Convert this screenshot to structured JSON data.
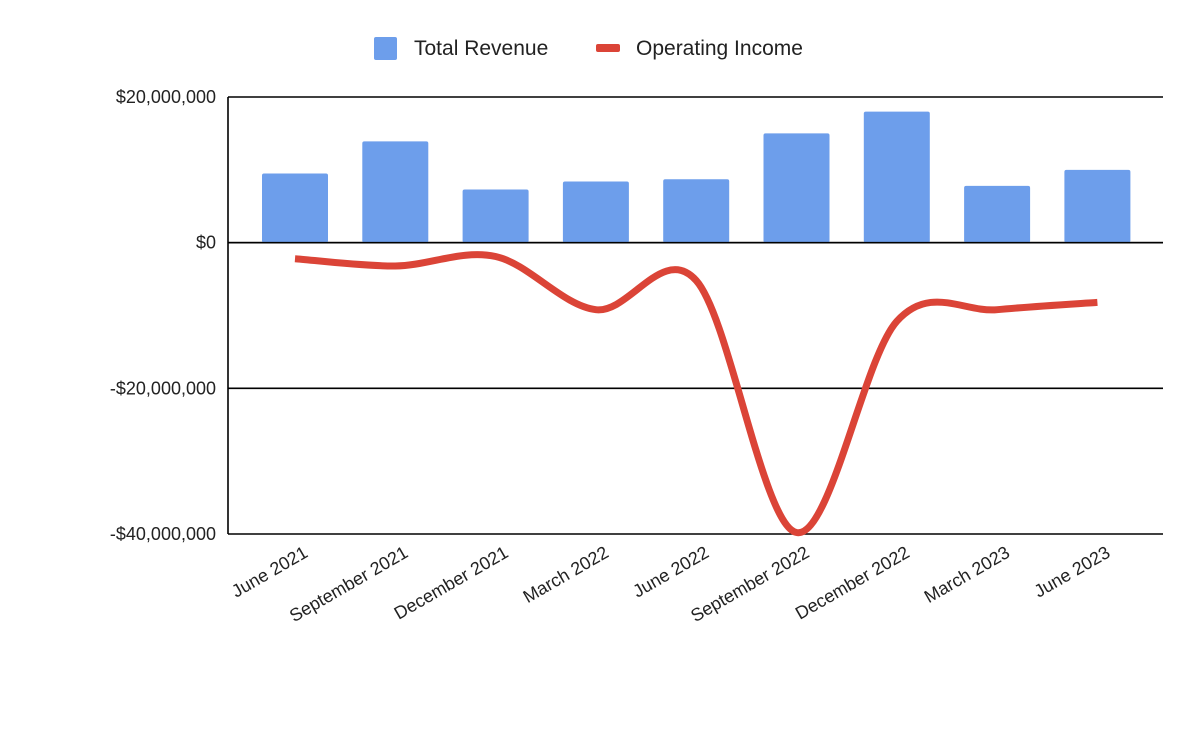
{
  "chart_data": {
    "type": "bar",
    "title": "",
    "xlabel": "",
    "ylabel": "",
    "categories": [
      "June 2021",
      "September 2021",
      "December 2021",
      "March 2022",
      "June 2022",
      "September 2022",
      "December 2022",
      "March 2023",
      "June 2023"
    ],
    "series": [
      {
        "name": "Total Revenue",
        "type": "bar",
        "color": "#6d9eeb",
        "values": [
          9500000,
          13900000,
          7300000,
          8400000,
          8700000,
          15000000,
          18000000,
          7800000,
          10000000
        ]
      },
      {
        "name": "Operating Income",
        "type": "line",
        "smooth": true,
        "color": "#db4437",
        "values": [
          -2200000,
          -3200000,
          -1900000,
          -9200000,
          -5200000,
          -39800000,
          -10800000,
          -9200000,
          -8200000
        ]
      }
    ],
    "ylim": [
      -40000000,
      20000000
    ],
    "yticks": [
      20000000,
      0,
      -20000000,
      -40000000
    ],
    "ytick_labels": [
      "$20,000,000",
      "$0",
      "-$20,000,000",
      "-$40,000,000"
    ],
    "grid": true,
    "legend_position": "top"
  }
}
